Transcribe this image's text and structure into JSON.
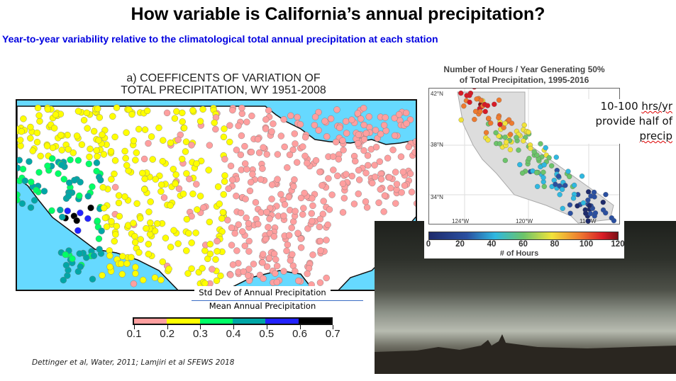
{
  "slide": {
    "title": "How variable is California’s annual precipitation?",
    "subtitle": "Year-to-year variability relative to the climatological total annual precipitation at each station",
    "citation": "Dettinger et al, Water, 2011; Lamjiri et al SFEWS 2018"
  },
  "cv_map": {
    "title_line1": "a) COEFFICENTS OF VARIATION OF",
    "title_line2": "TOTAL PRECIPITATION, WY 1951-2008",
    "formula_numerator": "Std Dev of Annual Precipitation",
    "formula_denominator": "Mean Annual Precipitation",
    "colorbar": {
      "labels": [
        "0.1",
        "0.2",
        "0.3",
        "0.4",
        "0.5",
        "0.6",
        "0.7"
      ],
      "colors": [
        "#ff9f9f",
        "#ffff00",
        "#00ff66",
        "#00a6a6",
        "#2222ff",
        "#000000"
      ]
    }
  },
  "ca_map": {
    "title_line1": "Number of Hours / Year Generating 50%",
    "title_line2": "of Total Precipitation, 1995-2016",
    "lat_labels": [
      "42°N",
      "38°N",
      "34°N"
    ],
    "lon_labels": [
      "124°W",
      "120°W",
      "116°W"
    ],
    "colorbar_labels": [
      "0",
      "20",
      "40",
      "60",
      "80",
      "100",
      "120"
    ],
    "colorbar_title": "# of Hours"
  },
  "note": {
    "line1_a": "10-100 ",
    "line1_b": "hrs/yr",
    "line2": "provide half of",
    "line3": "precip"
  }
}
